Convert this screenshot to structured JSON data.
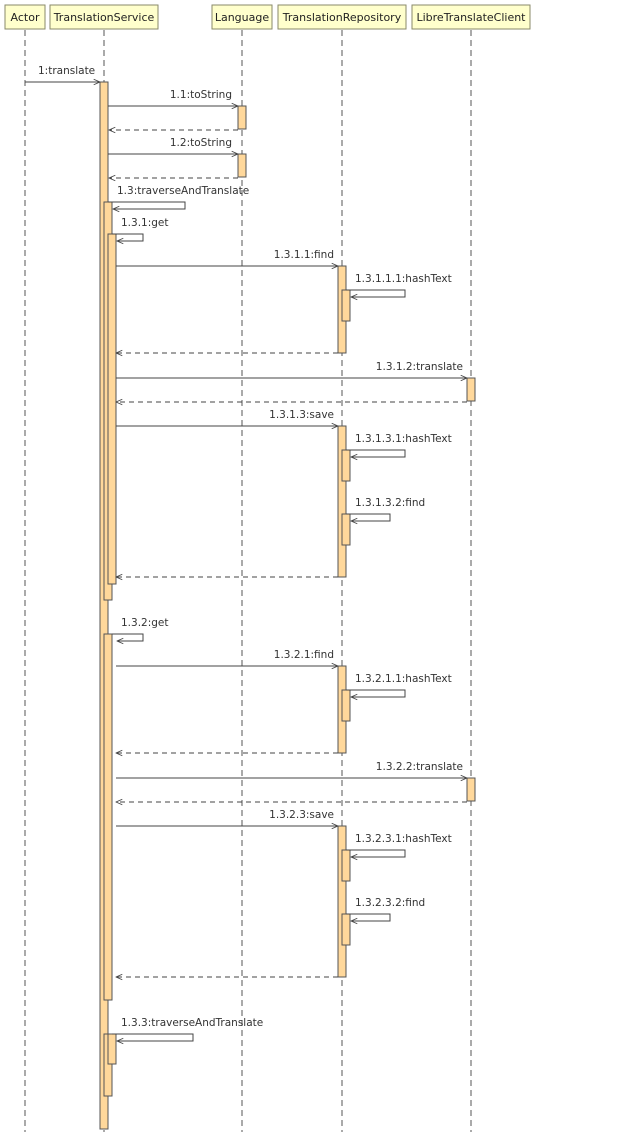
{
  "participants": [
    {
      "id": "actor",
      "label": "Actor"
    },
    {
      "id": "ts",
      "label": "TranslationService"
    },
    {
      "id": "lang",
      "label": "Language"
    },
    {
      "id": "repo",
      "label": "TranslationRepository"
    },
    {
      "id": "client",
      "label": "LibreTranslateClient"
    }
  ],
  "messages": [
    {
      "label": "1:translate",
      "from": "actor",
      "to": "ts",
      "kind": "call"
    },
    {
      "label": "1.1:toString",
      "from": "ts",
      "to": "lang",
      "kind": "call"
    },
    {
      "label": "",
      "from": "lang",
      "to": "ts",
      "kind": "return"
    },
    {
      "label": "1.2:toString",
      "from": "ts",
      "to": "lang",
      "kind": "call"
    },
    {
      "label": "",
      "from": "lang",
      "to": "ts",
      "kind": "return"
    },
    {
      "label": "1.3:traverseAndTranslate",
      "from": "ts",
      "to": "ts",
      "kind": "self"
    },
    {
      "label": "1.3.1:get",
      "from": "ts",
      "to": "ts",
      "kind": "self"
    },
    {
      "label": "1.3.1.1:find",
      "from": "ts",
      "to": "repo",
      "kind": "call"
    },
    {
      "label": "1.3.1.1.1:hashText",
      "from": "repo",
      "to": "repo",
      "kind": "self"
    },
    {
      "label": "",
      "from": "repo",
      "to": "ts",
      "kind": "return"
    },
    {
      "label": "1.3.1.2:translate",
      "from": "ts",
      "to": "client",
      "kind": "call"
    },
    {
      "label": "",
      "from": "client",
      "to": "ts",
      "kind": "return"
    },
    {
      "label": "1.3.1.3:save",
      "from": "ts",
      "to": "repo",
      "kind": "call"
    },
    {
      "label": "1.3.1.3.1:hashText",
      "from": "repo",
      "to": "repo",
      "kind": "self"
    },
    {
      "label": "1.3.1.3.2:find",
      "from": "repo",
      "to": "repo",
      "kind": "self"
    },
    {
      "label": "",
      "from": "repo",
      "to": "ts",
      "kind": "return"
    },
    {
      "label": "1.3.2:get",
      "from": "ts",
      "to": "ts",
      "kind": "self"
    },
    {
      "label": "1.3.2.1:find",
      "from": "ts",
      "to": "repo",
      "kind": "call"
    },
    {
      "label": "1.3.2.1.1:hashText",
      "from": "repo",
      "to": "repo",
      "kind": "self"
    },
    {
      "label": "",
      "from": "repo",
      "to": "ts",
      "kind": "return"
    },
    {
      "label": "1.3.2.2:translate",
      "from": "ts",
      "to": "client",
      "kind": "call"
    },
    {
      "label": "",
      "from": "client",
      "to": "ts",
      "kind": "return"
    },
    {
      "label": "1.3.2.3:save",
      "from": "ts",
      "to": "repo",
      "kind": "call"
    },
    {
      "label": "1.3.2.3.1:hashText",
      "from": "repo",
      "to": "repo",
      "kind": "self"
    },
    {
      "label": "1.3.2.3.2:find",
      "from": "repo",
      "to": "repo",
      "kind": "self"
    },
    {
      "label": "",
      "from": "repo",
      "to": "ts",
      "kind": "return"
    },
    {
      "label": "1.3.3:traverseAndTranslate",
      "from": "ts",
      "to": "ts",
      "kind": "self"
    }
  ],
  "colors": {
    "participant_fill": "#ffffcc",
    "activation_fill": "#ffd89b",
    "line": "#444444"
  }
}
